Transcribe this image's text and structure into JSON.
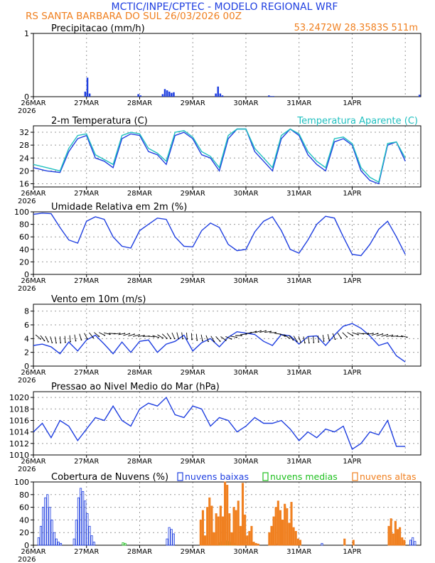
{
  "header": {
    "line1": "MCTIC/INPE/CPTEC - MODELO REGIONAL WRF",
    "line2": "RS SANTA BARBARA DO SUL   26/03/2026 00Z",
    "coords": "53.2472W 28.3583S 511m"
  },
  "colors": {
    "blue": "#1f3fe0",
    "cyan": "#20c0c0",
    "orange": "#f08020",
    "green": "#20c020",
    "navy": "#1e2a9a",
    "black": "#000000"
  },
  "chart_data": [
    {
      "type": "bar",
      "id": "precip",
      "title": "Precipitacao (mm/h)",
      "ylim": [
        0,
        1
      ],
      "yticks": [
        0,
        1
      ],
      "xticks": [
        "26MAR",
        "27MAR",
        "28MAR",
        "29MAR",
        "30MAR",
        "31MAR",
        "1APR"
      ],
      "first_year": "2026",
      "x_range_hours": [
        0,
        168
      ],
      "hours": [
        23,
        24,
        25,
        47,
        48,
        58,
        59,
        60,
        61,
        62,
        63,
        82,
        83,
        84,
        85,
        106,
        107,
        108,
        174
      ],
      "values": [
        0.08,
        0.3,
        0.05,
        0.04,
        0.02,
        0.04,
        0.12,
        0.1,
        0.08,
        0.06,
        0.07,
        0.05,
        0.16,
        0.05,
        0.02,
        0.02,
        0.01,
        0.01,
        0.03
      ]
    },
    {
      "type": "line",
      "id": "temp",
      "title": "2-m Temperatura (C)",
      "ylim": [
        15,
        34
      ],
      "yticks": [
        16,
        20,
        24,
        28,
        32
      ],
      "legend_label": "Temperatura Aparente (C)",
      "xticks": [
        "26MAR",
        "27MAR",
        "28MAR",
        "29MAR",
        "30MAR",
        "31MAR",
        "1APR"
      ],
      "first_year": "2026",
      "series": [
        {
          "name": "Temperatura",
          "color": "#1f3fe0",
          "x": [
            0,
            6,
            12,
            16,
            20,
            24,
            28,
            32,
            36,
            40,
            44,
            48,
            52,
            56,
            60,
            64,
            68,
            72,
            76,
            80,
            84,
            88,
            92,
            96,
            100,
            104,
            108,
            112,
            116,
            120,
            124,
            128,
            132,
            136,
            140,
            144,
            148,
            152,
            156,
            160,
            164,
            168
          ],
          "y": [
            21,
            20,
            19.5,
            26,
            30,
            31,
            24,
            23,
            21,
            30,
            31.5,
            31,
            26,
            25,
            22,
            31,
            32,
            30,
            25,
            24,
            20,
            30,
            33,
            33,
            26,
            23,
            20,
            30,
            33,
            31,
            25,
            22,
            20,
            29,
            30,
            28,
            20,
            17,
            16,
            28,
            29,
            23
          ]
        },
        {
          "name": "Temperatura Aparente",
          "color": "#20c0c0",
          "x": [
            0,
            6,
            12,
            16,
            20,
            24,
            28,
            32,
            36,
            40,
            44,
            48,
            52,
            56,
            60,
            64,
            68,
            72,
            76,
            80,
            84,
            88,
            92,
            96,
            100,
            104,
            108,
            112,
            116,
            120,
            124,
            128,
            132,
            136,
            140,
            144,
            148,
            152,
            156,
            160,
            164,
            168
          ],
          "y": [
            22,
            21,
            20,
            27,
            31,
            31.5,
            25,
            23.5,
            22,
            31,
            32,
            31.5,
            27,
            25.5,
            23,
            32,
            32.5,
            30.5,
            26,
            24.5,
            21,
            31,
            33,
            33,
            27,
            24,
            21,
            31,
            33,
            31.5,
            26,
            23,
            21,
            30,
            30.5,
            28.5,
            21,
            18,
            16.5,
            28.5,
            29,
            24
          ]
        }
      ]
    },
    {
      "type": "line",
      "id": "rh",
      "title": "Umidade Relativa em 2m (%)",
      "ylim": [
        0,
        100
      ],
      "yticks": [
        0,
        20,
        40,
        60,
        80,
        100
      ],
      "xticks": [
        "26MAR",
        "27MAR",
        "28MAR",
        "29MAR",
        "30MAR",
        "31MAR",
        "1APR"
      ],
      "first_year": "2026",
      "series": [
        {
          "name": "Umidade",
          "color": "#1f3fe0",
          "x": [
            0,
            4,
            8,
            12,
            16,
            20,
            24,
            28,
            32,
            36,
            40,
            44,
            48,
            52,
            56,
            60,
            64,
            68,
            72,
            76,
            80,
            84,
            88,
            92,
            96,
            100,
            104,
            108,
            112,
            116,
            120,
            124,
            128,
            132,
            136,
            140,
            144,
            148,
            152,
            156,
            160,
            164,
            168
          ],
          "y": [
            96,
            98,
            97,
            75,
            55,
            50,
            85,
            92,
            88,
            60,
            45,
            42,
            70,
            80,
            90,
            88,
            60,
            45,
            44,
            70,
            82,
            75,
            48,
            38,
            40,
            68,
            85,
            92,
            70,
            40,
            34,
            55,
            80,
            93,
            90,
            60,
            32,
            30,
            48,
            72,
            85,
            60,
            32
          ]
        }
      ]
    },
    {
      "type": "line",
      "id": "wind",
      "title": "Vento em 10m (m/s)",
      "ylim": [
        0,
        9
      ],
      "yticks": [
        0,
        2,
        4,
        6,
        8
      ],
      "xticks": [
        "26MAR",
        "27MAR",
        "28MAR",
        "29MAR",
        "30MAR",
        "31MAR",
        "1APR"
      ],
      "first_year": "2026",
      "series": [
        {
          "name": "Vento",
          "color": "#1f3fe0",
          "x": [
            0,
            4,
            8,
            12,
            16,
            20,
            24,
            28,
            32,
            36,
            40,
            44,
            48,
            52,
            56,
            60,
            64,
            68,
            72,
            76,
            80,
            84,
            88,
            92,
            96,
            100,
            104,
            108,
            112,
            116,
            120,
            124,
            128,
            132,
            136,
            140,
            144,
            148,
            152,
            156,
            160,
            164,
            168
          ],
          "y": [
            3,
            3.2,
            2.8,
            1.8,
            3.5,
            2.2,
            3.8,
            4.5,
            3.2,
            1.8,
            3.5,
            2.0,
            3.6,
            3.8,
            2.0,
            3.2,
            3.6,
            4.5,
            2.2,
            3.4,
            4.0,
            2.8,
            4.2,
            5.0,
            4.8,
            4.6,
            3.6,
            3.0,
            4.6,
            4.4,
            3.2,
            4.3,
            4.4,
            3.0,
            4.5,
            5.8,
            6.2,
            5.5,
            4.4,
            3.0,
            3.4,
            1.5,
            0.6
          ]
        }
      ]
    },
    {
      "type": "line",
      "id": "pressure",
      "title": "Pressao ao Nivel Medio do Mar (hPa)",
      "ylim": [
        1010,
        1021
      ],
      "yticks": [
        1010,
        1012,
        1014,
        1016,
        1018,
        1020
      ],
      "xticks": [
        "26MAR",
        "27MAR",
        "28MAR",
        "29MAR",
        "30MAR",
        "31MAR",
        "1APR"
      ],
      "first_year": "2026",
      "series": [
        {
          "name": "Pressao",
          "color": "#1f3fe0",
          "x": [
            0,
            4,
            8,
            12,
            16,
            20,
            24,
            28,
            32,
            36,
            40,
            44,
            48,
            52,
            56,
            60,
            64,
            68,
            72,
            76,
            80,
            84,
            88,
            92,
            96,
            100,
            104,
            108,
            112,
            116,
            120,
            124,
            128,
            132,
            136,
            140,
            144,
            148,
            152,
            156,
            160,
            164,
            168
          ],
          "y": [
            1014,
            1015.5,
            1013,
            1016,
            1015,
            1012.5,
            1014.5,
            1016.5,
            1016,
            1018.5,
            1016,
            1015,
            1018,
            1019,
            1018.5,
            1020,
            1017,
            1016.5,
            1018.5,
            1018,
            1015,
            1016.5,
            1016,
            1014,
            1015,
            1016.5,
            1015.5,
            1015.5,
            1016,
            1014.5,
            1012.5,
            1014,
            1013,
            1014.5,
            1014,
            1015,
            1011,
            1012,
            1014,
            1013.5,
            1016,
            1011.5,
            1011.5
          ]
        }
      ]
    },
    {
      "type": "bar",
      "id": "clouds",
      "title": "Cobertura de Nuvens (%)",
      "ylim": [
        0,
        100
      ],
      "yticks": [
        0,
        20,
        40,
        60,
        80,
        100
      ],
      "legend": [
        {
          "name": "nuvens baixas",
          "color": "#1f3fe0"
        },
        {
          "name": "nuvens medias",
          "color": "#20c020"
        },
        {
          "name": "nuvens altas",
          "color": "#f08020"
        }
      ],
      "xticks": [
        "26MAR",
        "27MAR",
        "28MAR",
        "29MAR",
        "30MAR",
        "31MAR",
        "1APR"
      ],
      "first_year": "2026",
      "series": [
        {
          "name": "nuvens baixas",
          "color": "#1f3fe0",
          "hours": [
            2,
            3,
            4,
            5,
            6,
            7,
            8,
            9,
            10,
            11,
            12,
            18,
            19,
            20,
            21,
            22,
            23,
            24,
            25,
            26,
            27,
            60,
            61,
            62,
            63,
            86,
            87,
            88,
            89,
            110,
            130,
            170,
            171,
            172
          ],
          "values": [
            12,
            30,
            60,
            75,
            80,
            60,
            40,
            20,
            10,
            5,
            3,
            10,
            40,
            75,
            90,
            85,
            70,
            50,
            30,
            15,
            5,
            10,
            28,
            25,
            18,
            3,
            6,
            4,
            3,
            2,
            3,
            8,
            12,
            6
          ]
        },
        {
          "name": "nuvens medias",
          "color": "#20c020",
          "hours": [
            40,
            41,
            84,
            85,
            86,
            87,
            88,
            89,
            90,
            91
          ],
          "values": [
            4,
            3,
            4,
            6,
            5,
            7,
            6,
            5,
            4,
            3
          ]
        },
        {
          "name": "nuvens altas",
          "color": "#f08020",
          "hours": [
            75,
            76,
            77,
            78,
            79,
            80,
            81,
            82,
            83,
            84,
            85,
            86,
            87,
            88,
            89,
            90,
            91,
            92,
            93,
            94,
            95,
            96,
            97,
            98,
            99,
            100,
            101,
            106,
            107,
            108,
            109,
            110,
            111,
            112,
            113,
            114,
            115,
            116,
            117,
            118,
            119,
            120,
            140,
            144,
            160,
            161,
            162,
            163,
            164,
            165,
            166,
            167
          ],
          "values": [
            40,
            55,
            15,
            60,
            75,
            62,
            20,
            50,
            45,
            62,
            45,
            100,
            95,
            50,
            20,
            60,
            55,
            70,
            30,
            98,
            48,
            15,
            22,
            30,
            5,
            3,
            2,
            20,
            30,
            45,
            60,
            70,
            55,
            40,
            65,
            58,
            35,
            68,
            28,
            22,
            10,
            8,
            10,
            8,
            30,
            42,
            18,
            38,
            25,
            28,
            12,
            8
          ]
        }
      ]
    }
  ]
}
